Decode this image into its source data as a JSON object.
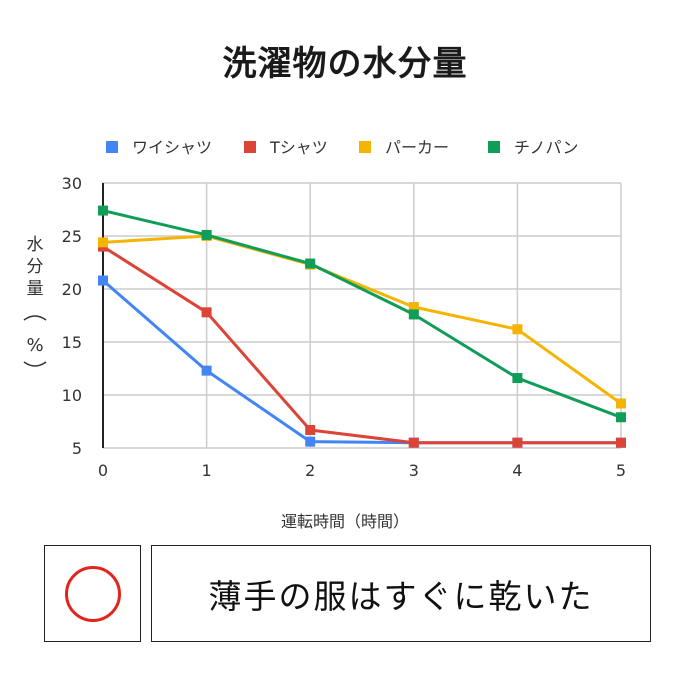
{
  "chart_data": {
    "type": "line",
    "title": "洗濯物の水分量",
    "xlabel": "運転時間（時間）",
    "ylabel": "水分量（%）",
    "ylabel_chars": [
      "水",
      "分",
      "量"
    ],
    "ylabel_unit": "%",
    "x": [
      0,
      1,
      2,
      3,
      4,
      5
    ],
    "x_ticks": [
      "0",
      "1",
      "2",
      "3",
      "4",
      "5"
    ],
    "ylim": [
      5,
      30
    ],
    "y_ticks": [
      "5",
      "10",
      "15",
      "20",
      "25",
      "30"
    ],
    "grid": true,
    "legend_position": "top",
    "series": [
      {
        "name": "ワイシャツ",
        "color": "#4285f4",
        "values": [
          20.8,
          12.3,
          5.6,
          5.5,
          5.5,
          5.5
        ]
      },
      {
        "name": "Tシャツ",
        "color": "#db4437",
        "values": [
          24.0,
          17.8,
          6.7,
          5.5,
          5.5,
          5.5
        ]
      },
      {
        "name": "パーカー",
        "color": "#f4b400",
        "values": [
          24.4,
          25.0,
          22.3,
          18.3,
          16.2,
          9.2
        ]
      },
      {
        "name": "チノパン",
        "color": "#0f9d58",
        "values": [
          27.4,
          25.1,
          22.4,
          17.6,
          11.6,
          7.9
        ]
      }
    ]
  },
  "answer": {
    "mark_icon": "red-circle-icon",
    "mark_color": "#e3241b",
    "conclusion": "薄手の服はすぐに乾いた"
  }
}
